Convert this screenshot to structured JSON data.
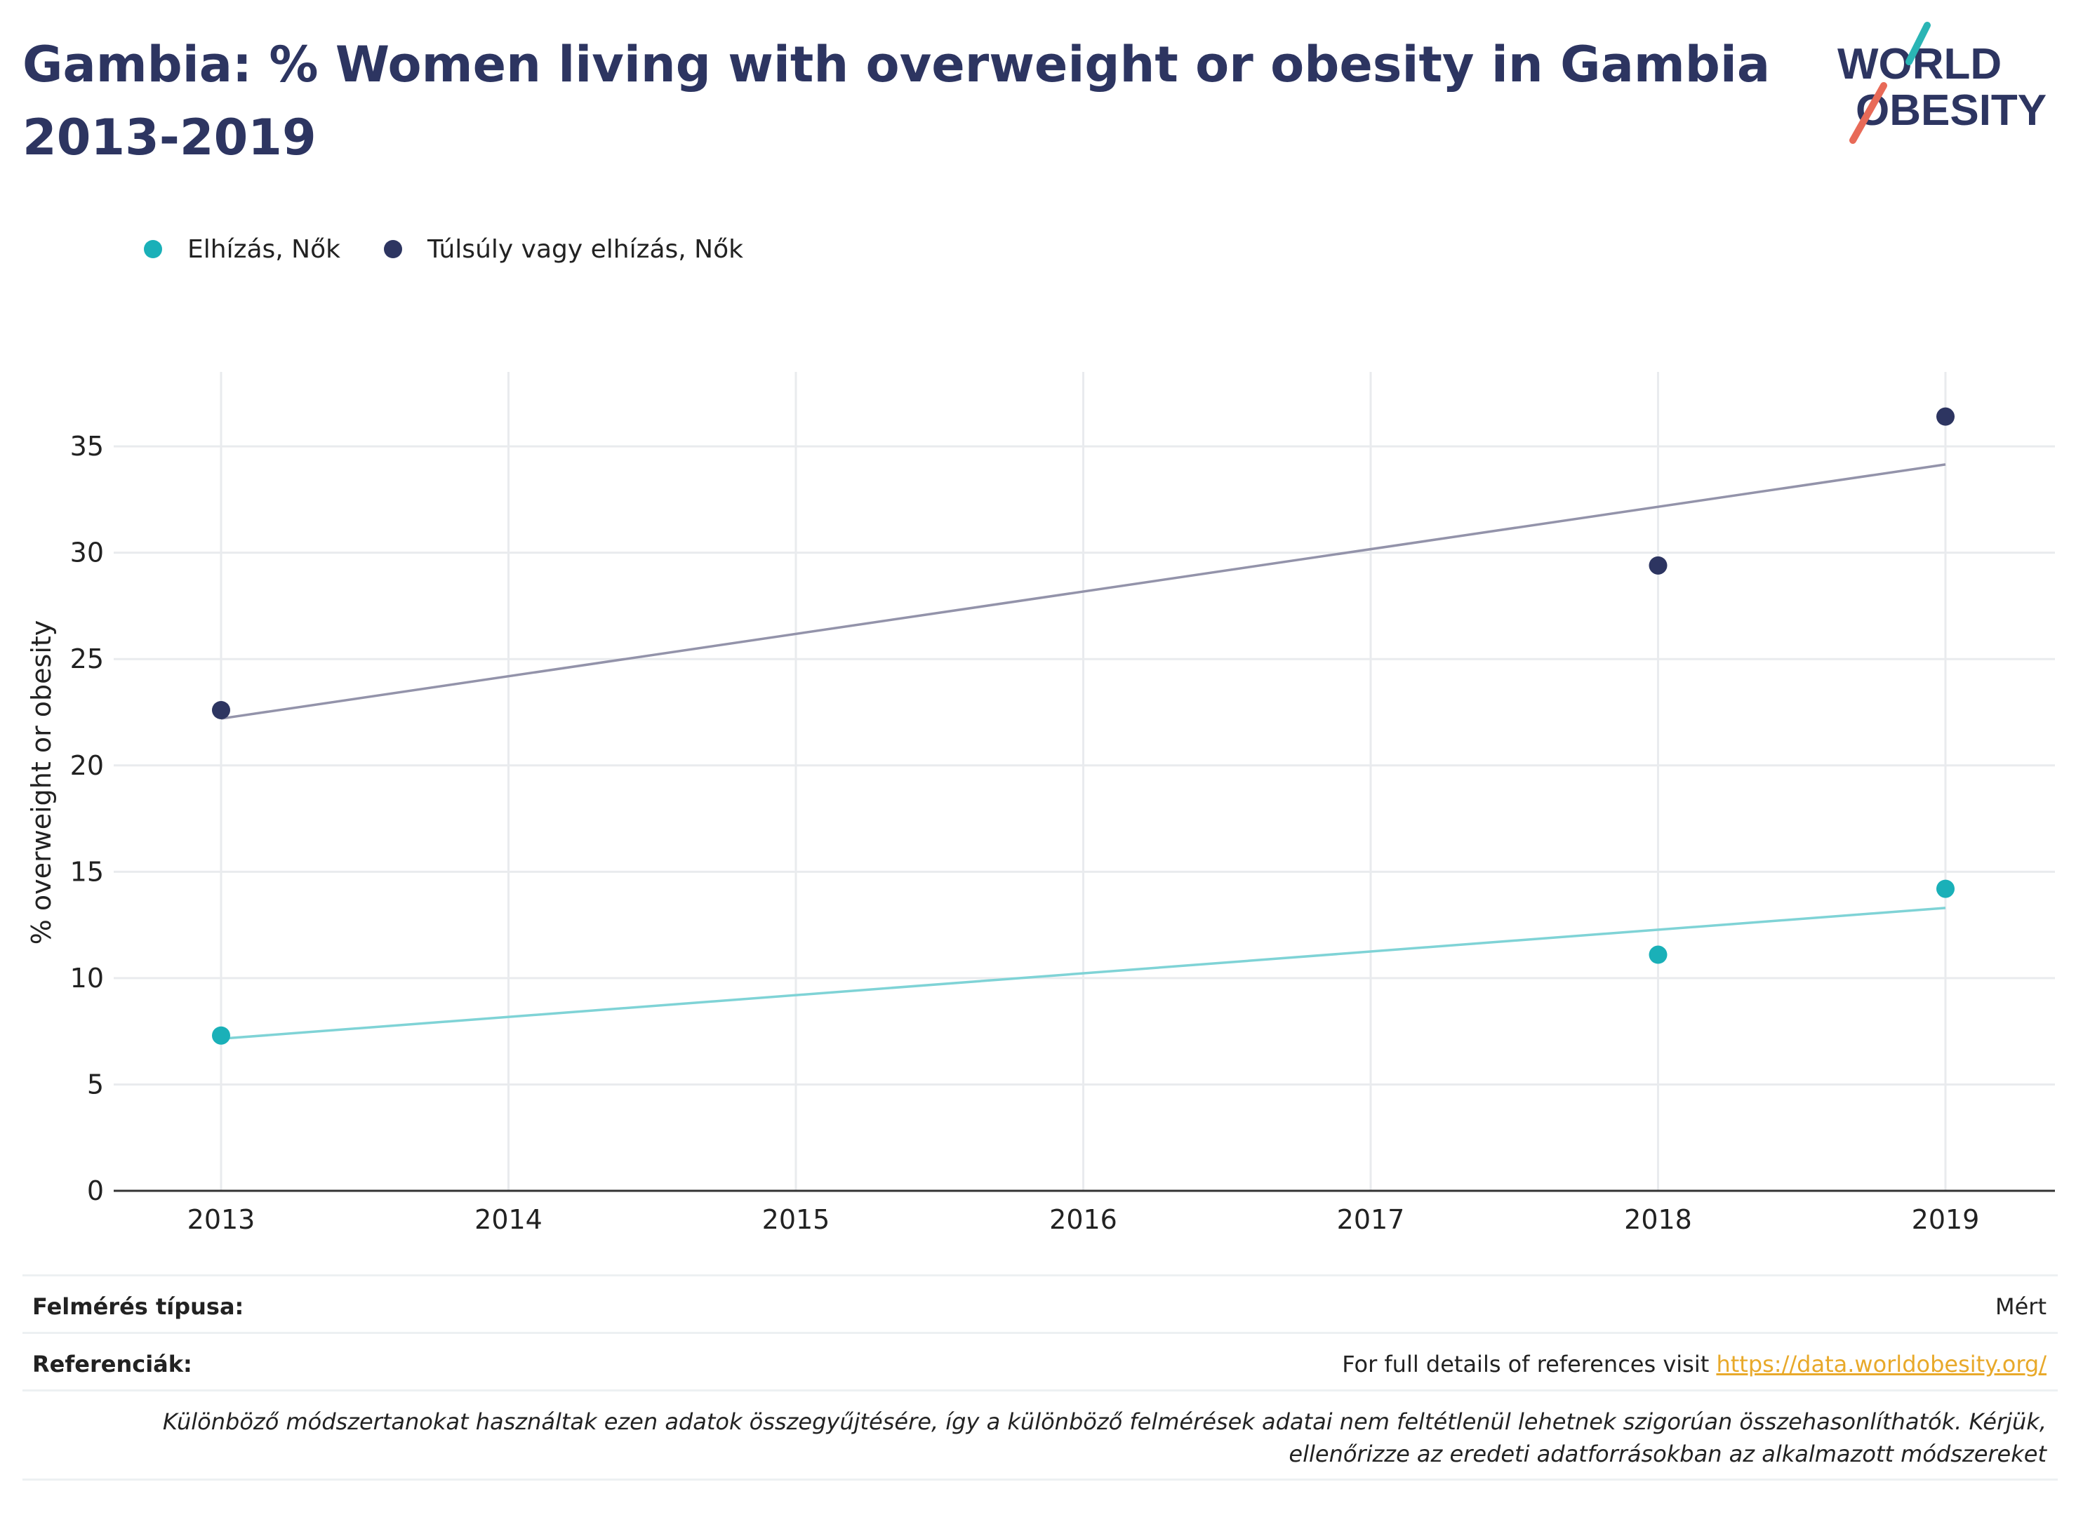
{
  "page": {
    "title": "Gambia: % Women living with overweight or obesity in Gambia 2013-2019"
  },
  "logo": {
    "line1": "WORLD",
    "line2": "OBESITY",
    "colors": {
      "text": "#2d3561",
      "slash_teal": "#2ab5b5",
      "slash_coral": "#e86a58"
    }
  },
  "chart_data": {
    "type": "scatter",
    "title": "Gambia: % Women living with overweight or obesity in Gambia 2013-2019",
    "ylabel": "% overweight or obesity",
    "xlabel": "",
    "x_ticks": [
      "2013",
      "2014",
      "2015",
      "2016",
      "2017",
      "2018",
      "2019"
    ],
    "y_ticks": [
      0,
      5,
      10,
      15,
      20,
      25,
      30,
      35
    ],
    "xlim": [
      2012.63,
      2019.37
    ],
    "ylim": [
      0,
      38.5
    ],
    "grid": true,
    "legend_position": "top-left",
    "series": [
      {
        "name": "Elhízás, Nők",
        "color": "#1ab0b8",
        "trend_color": "#7fd3d6",
        "points": [
          {
            "x": 2013,
            "y": 7.3
          },
          {
            "x": 2018,
            "y": 11.1
          },
          {
            "x": 2019,
            "y": 14.2
          }
        ],
        "trendline": [
          {
            "x": 2013,
            "y": 7.15
          },
          {
            "x": 2019,
            "y": 13.3
          }
        ]
      },
      {
        "name": "Túlsúly vagy elhízás, Nők",
        "color": "#2d3561",
        "trend_color": "#9393aa",
        "points": [
          {
            "x": 2013,
            "y": 22.6
          },
          {
            "x": 2018,
            "y": 29.4
          },
          {
            "x": 2019,
            "y": 36.4
          }
        ],
        "trendline": [
          {
            "x": 2013,
            "y": 22.2
          },
          {
            "x": 2019,
            "y": 34.15
          }
        ]
      }
    ]
  },
  "footer": {
    "survey_type_label": "Felmérés típusa:",
    "survey_type_value": "Mért",
    "references_label": "Referenciák:",
    "references_prefix": "For full details of references visit ",
    "references_link": "https://data.worldobesity.org/",
    "note": "Különböző módszertanokat használtak ezen adatok összegyűjtésére, így a különböző felmérések adatai nem feltétlenül lehetnek szigorúan összehasonlíthatók. Kérjük, ellenőrizze az eredeti adatforrásokban az alkalmazott módszereket"
  }
}
